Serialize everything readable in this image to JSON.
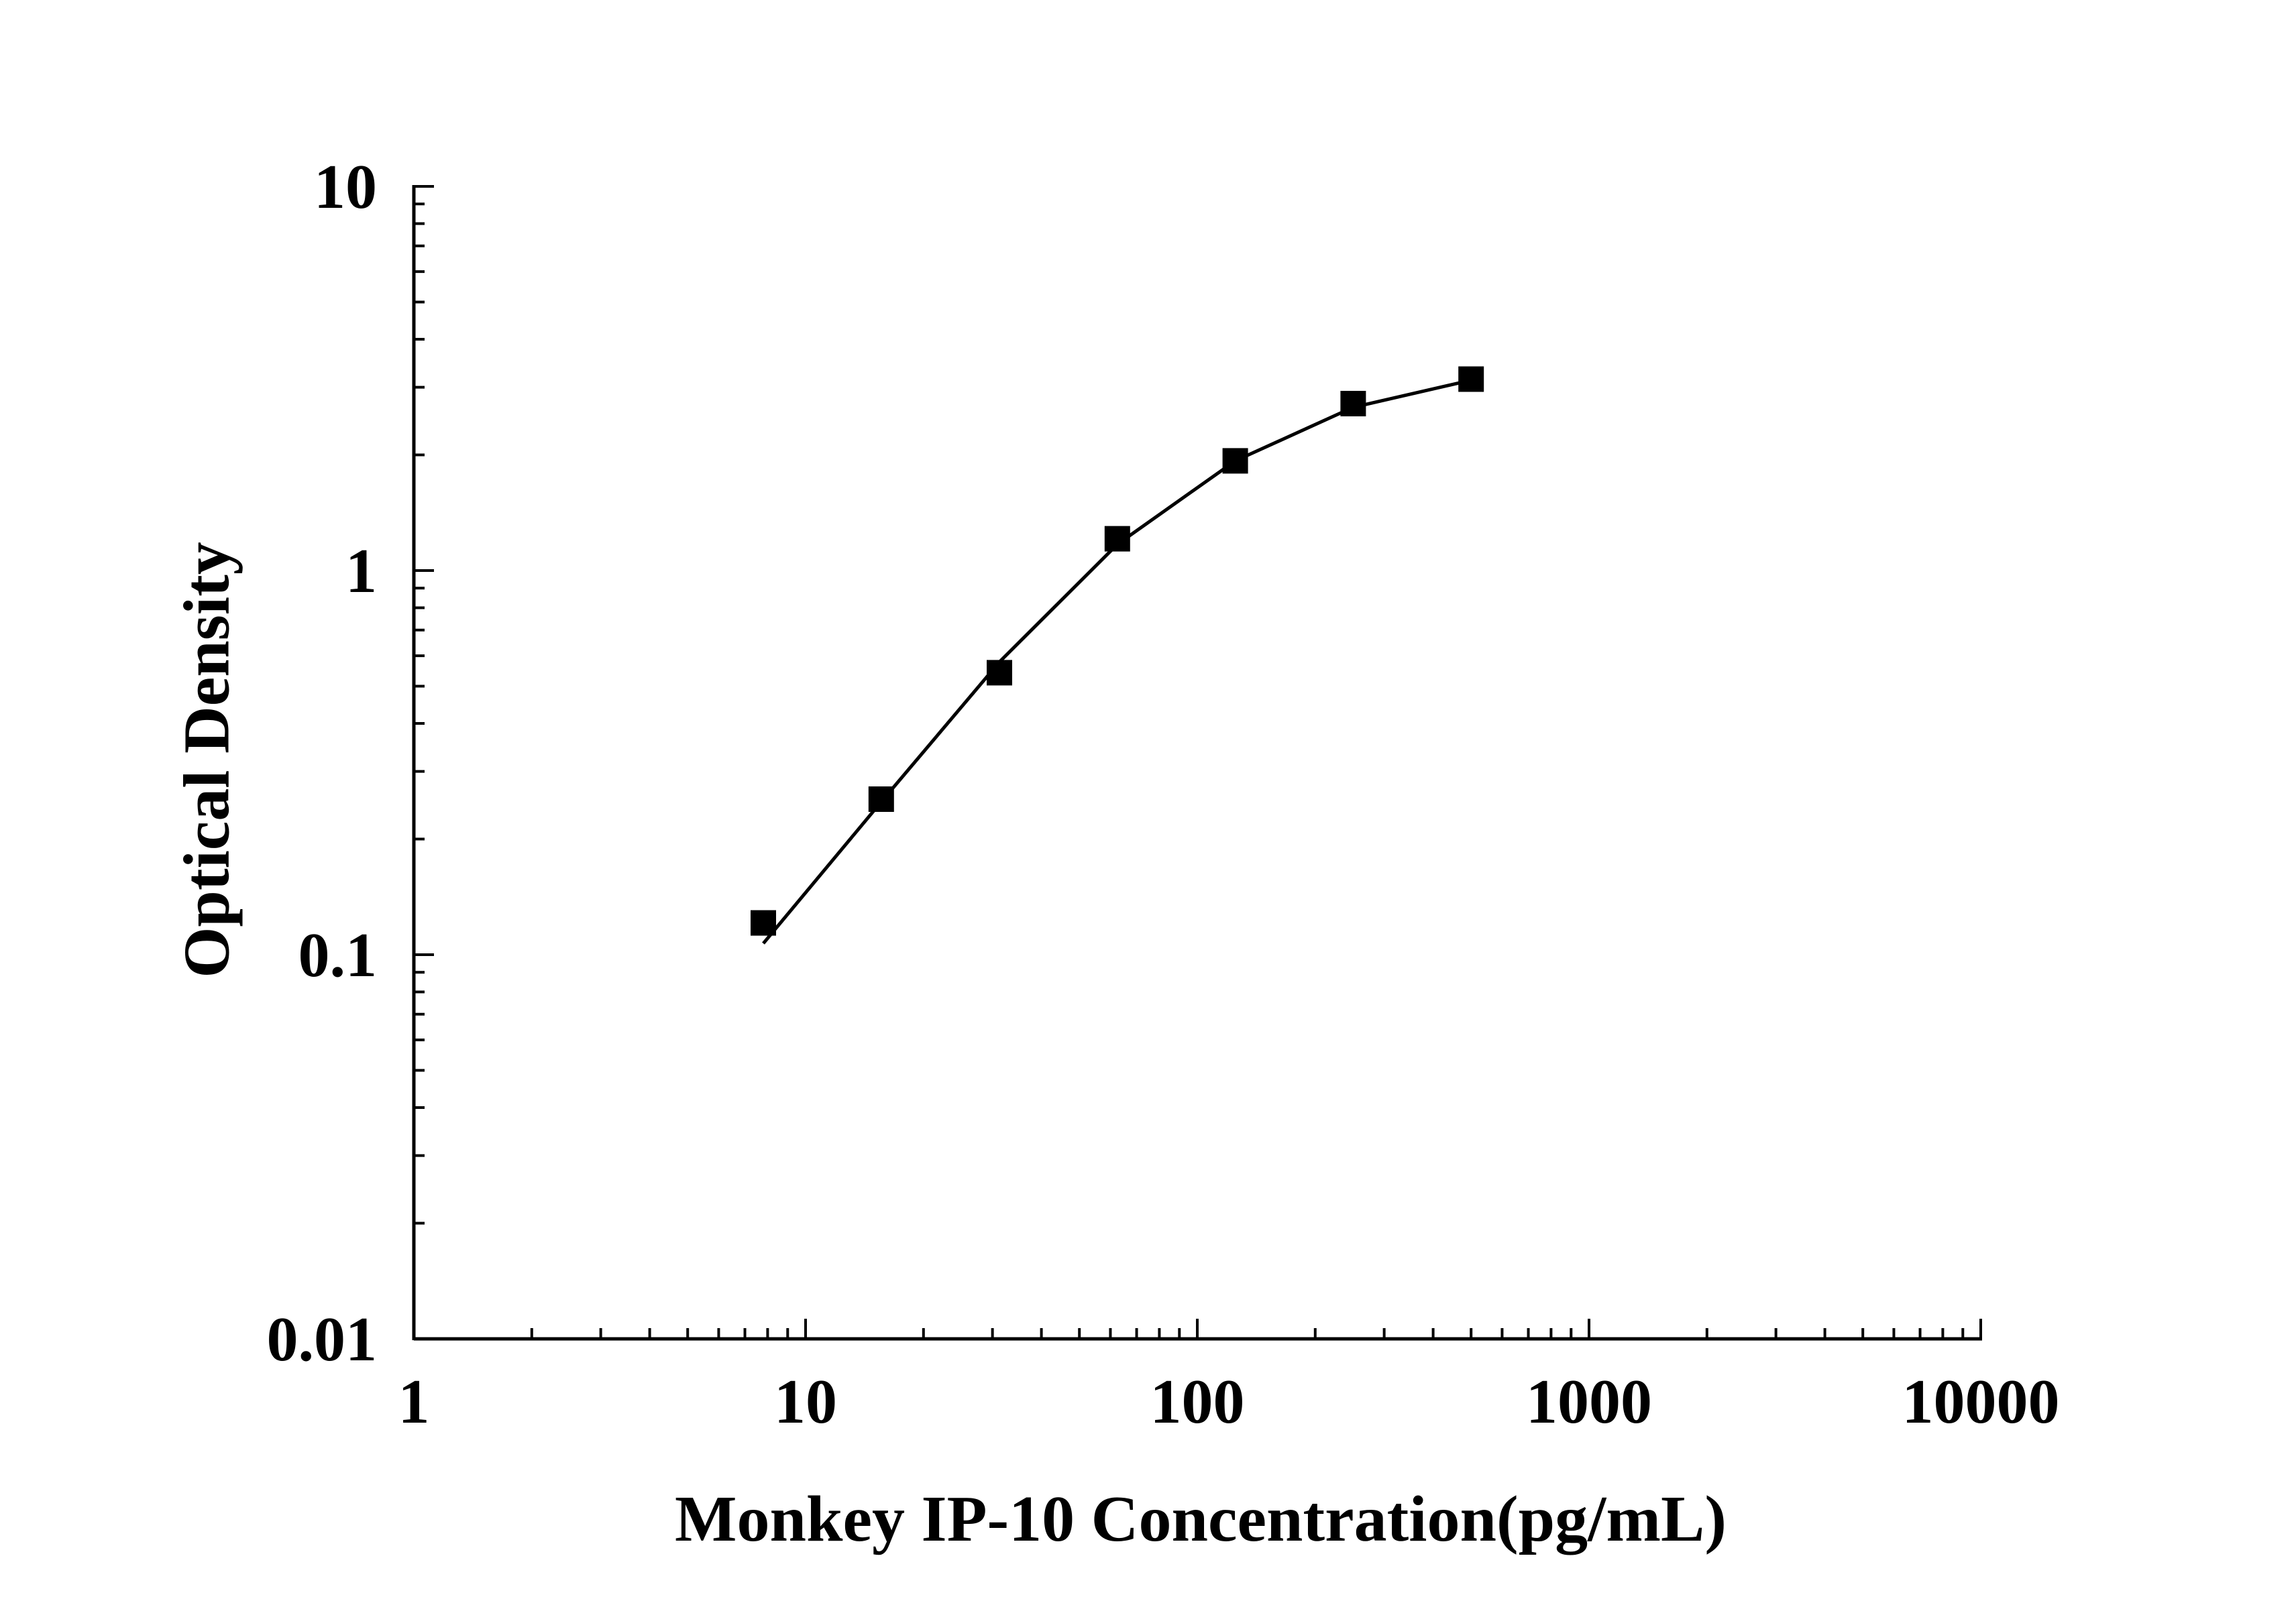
{
  "chart_data": {
    "type": "line",
    "title": "",
    "xlabel": "Monkey IP-10 Concentration(pg/mL)",
    "ylabel": "Optical Density",
    "x_scale": "log",
    "y_scale": "log",
    "xlim": [
      1,
      10000
    ],
    "ylim": [
      0.01,
      10
    ],
    "x_ticks": [
      {
        "value": 1,
        "label": "1"
      },
      {
        "value": 10,
        "label": "10"
      },
      {
        "value": 100,
        "label": "100"
      },
      {
        "value": 1000,
        "label": "1000"
      },
      {
        "value": 10000,
        "label": "10000"
      }
    ],
    "y_ticks": [
      {
        "value": 0.01,
        "label": "0.01"
      },
      {
        "value": 0.1,
        "label": "0.1"
      },
      {
        "value": 1,
        "label": "1"
      },
      {
        "value": 10,
        "label": "10"
      }
    ],
    "grid": false,
    "legend": "none",
    "colors": {
      "series": "#000000",
      "axis": "#000000",
      "background": "#ffffff"
    },
    "series": [
      {
        "marker": "square",
        "x": [
          7.8,
          15.6,
          31.25,
          62.5,
          125,
          250,
          500
        ],
        "y": [
          0.121,
          0.254,
          0.542,
          1.21,
          1.93,
          2.72,
          3.15
        ]
      }
    ],
    "fit_curve": {
      "x": [
        7.8,
        15.6,
        31.25,
        62.5,
        125,
        250,
        500
      ],
      "y": [
        0.107,
        0.25,
        0.578,
        1.17,
        1.93,
        2.66,
        3.13
      ]
    }
  }
}
